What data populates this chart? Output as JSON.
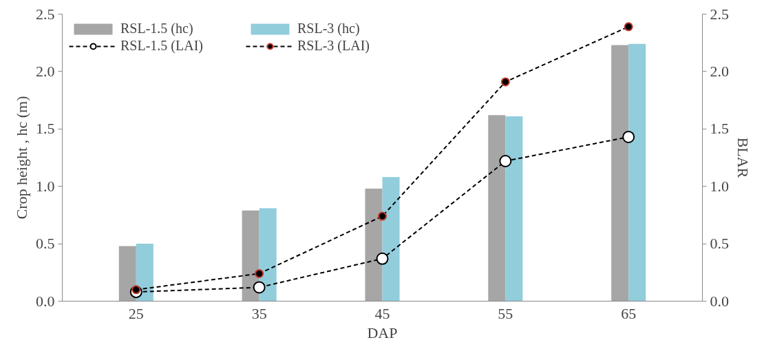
{
  "chart_data": {
    "type": "bar",
    "xlabel": "DAP",
    "ylabel": "Crop height , hc (m)",
    "y2label": "BLAR",
    "categories": [
      "25",
      "35",
      "45",
      "55",
      "65"
    ],
    "series": [
      {
        "name": "RSL-1.5 (hc)",
        "color": "#a6a6a6",
        "values": [
          0.48,
          0.79,
          0.98,
          1.62,
          2.23
        ]
      },
      {
        "name": "RSL-3 (hc)",
        "color": "#92cddc",
        "values": [
          0.5,
          0.81,
          1.08,
          1.61,
          2.24
        ]
      },
      {
        "name": "RSL-1.5 (LAI)",
        "type": "line",
        "color": "#000000",
        "values": [
          0.08,
          0.12,
          0.37,
          1.22,
          1.43
        ]
      },
      {
        "name": "RSL-3 (LAI)",
        "type": "line",
        "color": "#000000",
        "values": [
          0.1,
          0.24,
          0.74,
          1.91,
          2.39
        ]
      }
    ],
    "ylim": [
      0,
      2.5
    ],
    "yticks": [
      {
        "value": 0,
        "label": "0.0"
      },
      {
        "value": 0.5,
        "label": "0.5"
      },
      {
        "value": 1,
        "label": "1.0"
      },
      {
        "value": 1.5,
        "label": "1.5"
      },
      {
        "value": 2,
        "label": "2.0"
      },
      {
        "value": 2.5,
        "label": "2.5"
      }
    ],
    "y2lim": [
      0,
      2.5
    ],
    "y2ticks": [
      {
        "value": 0,
        "label": "0.0"
      },
      {
        "value": 0.5,
        "label": "0.5"
      },
      {
        "value": 1,
        "label": "1.0"
      },
      {
        "value": 1.5,
        "label": "1.5"
      },
      {
        "value": 2,
        "label": "2.0"
      },
      {
        "value": 2.5,
        "label": "2.5"
      }
    ],
    "legend": "top left",
    "grid": false,
    "marker": "circle",
    "line_style": "dashed"
  }
}
